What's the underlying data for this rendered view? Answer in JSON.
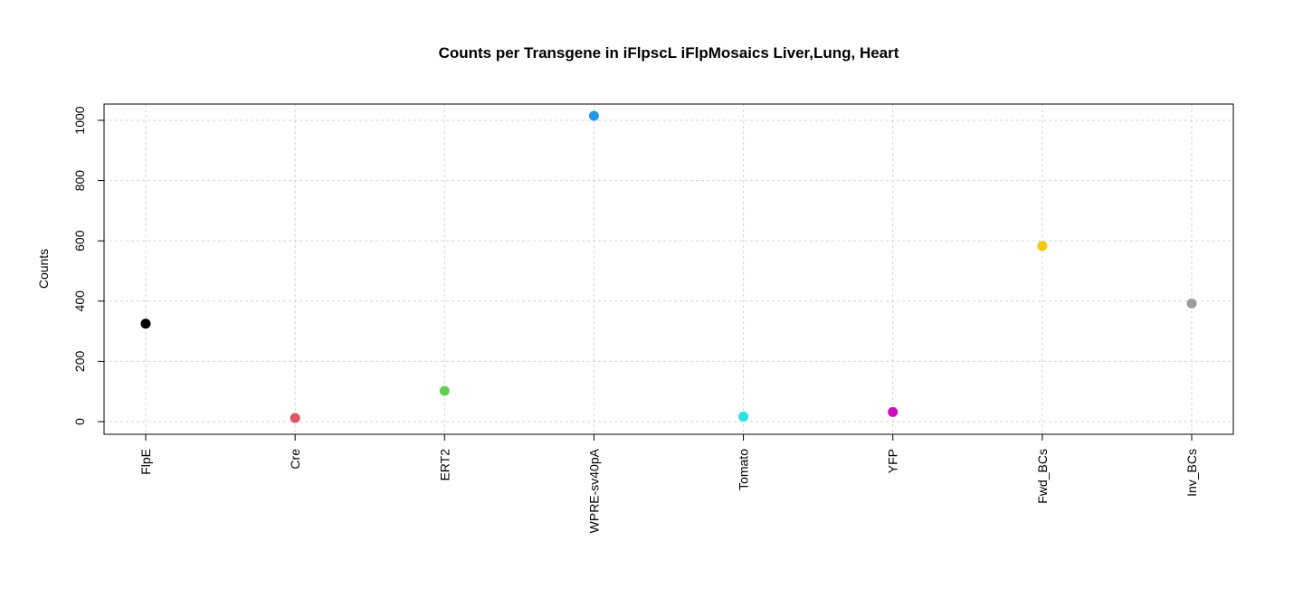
{
  "chart_data": {
    "type": "scatter",
    "title": "Counts per Transgene in iFlpscL iFlpMosaics Liver,Lung, Heart",
    "xlabel": "",
    "ylabel": "Counts",
    "categories": [
      "FlpE",
      "Cre",
      "ERT2",
      "WPRE-sv40pA",
      "Tomato",
      "YFP",
      "Fwd_BCs",
      "Inv_BCs"
    ],
    "values": [
      325,
      12,
      102,
      1015,
      17,
      32,
      583,
      392
    ],
    "colors": [
      "#000000",
      "#DF536B",
      "#61D04F",
      "#2297E6",
      "#28E2E5",
      "#CD0BBC",
      "#F5C710",
      "#9E9E9E"
    ],
    "ylim": [
      0,
      1000
    ],
    "yticks": [
      0,
      200,
      400,
      600,
      800,
      1000
    ],
    "grid": true
  }
}
